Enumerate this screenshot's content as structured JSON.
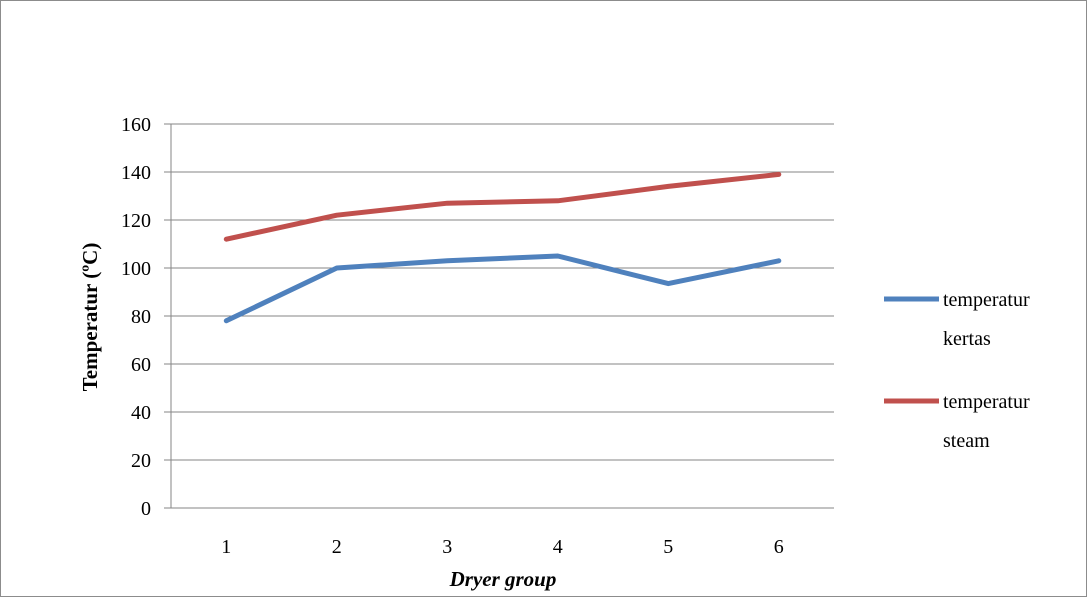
{
  "chart_data": {
    "type": "line",
    "title": "",
    "xlabel": "Dryer group",
    "ylabel": "Temperatur (ºC)",
    "categories": [
      "1",
      "2",
      "3",
      "4",
      "5",
      "6"
    ],
    "ylim": [
      0,
      160
    ],
    "yticks": [
      0,
      20,
      40,
      60,
      80,
      100,
      120,
      140,
      160
    ],
    "grid": true,
    "legend_position": "right",
    "series": [
      {
        "name": "temperatur kertas",
        "legend_lines": [
          "temperatur",
          "kertas"
        ],
        "color": "#4F81BD",
        "values": [
          78,
          100,
          103,
          105,
          93.5,
          103
        ]
      },
      {
        "name": "temperatur steam",
        "legend_lines": [
          "temperatur",
          "steam"
        ],
        "color": "#C0504D",
        "values": [
          112,
          122,
          127,
          128,
          134,
          139
        ]
      }
    ]
  }
}
